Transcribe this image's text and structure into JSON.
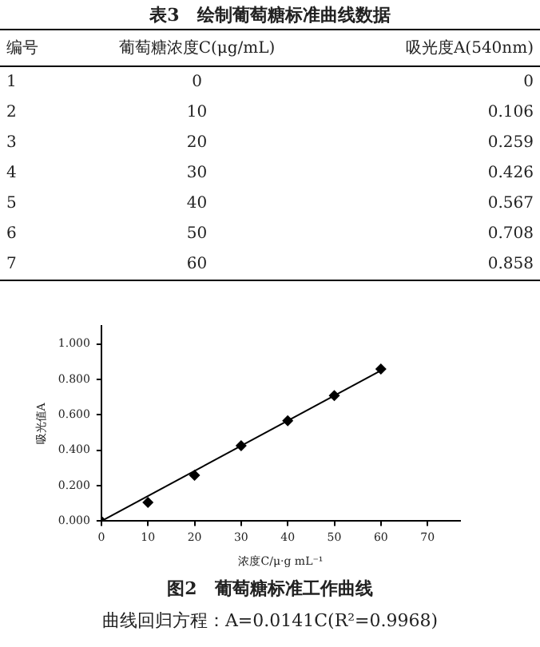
{
  "chart_data": {
    "type": "scatter",
    "title": "图2　葡萄糖标准工作曲线",
    "subtitle": "曲线回归方程：A=0.0141C(R²=0.9968)",
    "xlabel": "浓度C/μ·g mL⁻¹",
    "ylabel": "吸光值A",
    "annotations": [
      "表3　绘制葡萄糖标准曲线数据",
      "编号",
      "葡萄糖浓度C(μg/mL)",
      "吸光度A(540nm)",
      "1",
      "0",
      "0",
      "2",
      "10",
      "0.106",
      "3",
      "20",
      "0.259",
      "4",
      "30",
      "0.426",
      "5",
      "40",
      "0.567",
      "6",
      "50",
      "0.708",
      "7",
      "60",
      "0.858"
    ],
    "series": [
      {
        "color": "#000000",
        "x": [
          0,
          10,
          20,
          30,
          40,
          50,
          60
        ],
        "values": [
          0,
          0.106,
          0.259,
          0.426,
          0.567,
          0.708,
          0.858
        ]
      },
      {
        "type": "line",
        "color": "#000000",
        "marker": "none",
        "x": [
          0,
          60
        ],
        "values": [
          0,
          0.85
        ]
      }
    ],
    "xlim": [
      0,
      77
    ],
    "xticks": [
      0,
      10,
      20,
      30,
      40,
      50,
      60,
      70
    ],
    "ylim": [
      0,
      1.1
    ],
    "yticks": [
      {
        "value": 0,
        "label": "0.000"
      },
      {
        "value": 0.2,
        "label": "0.200"
      },
      {
        "value": 0.4,
        "label": "0.400"
      },
      {
        "value": 0.6,
        "label": "0.600"
      },
      {
        "value": 0.8,
        "label": "0.800"
      },
      {
        "value": 1,
        "label": "1.000"
      }
    ],
    "grid": false,
    "legend": false,
    "marker": "diamond",
    "line_style": "solid"
  }
}
